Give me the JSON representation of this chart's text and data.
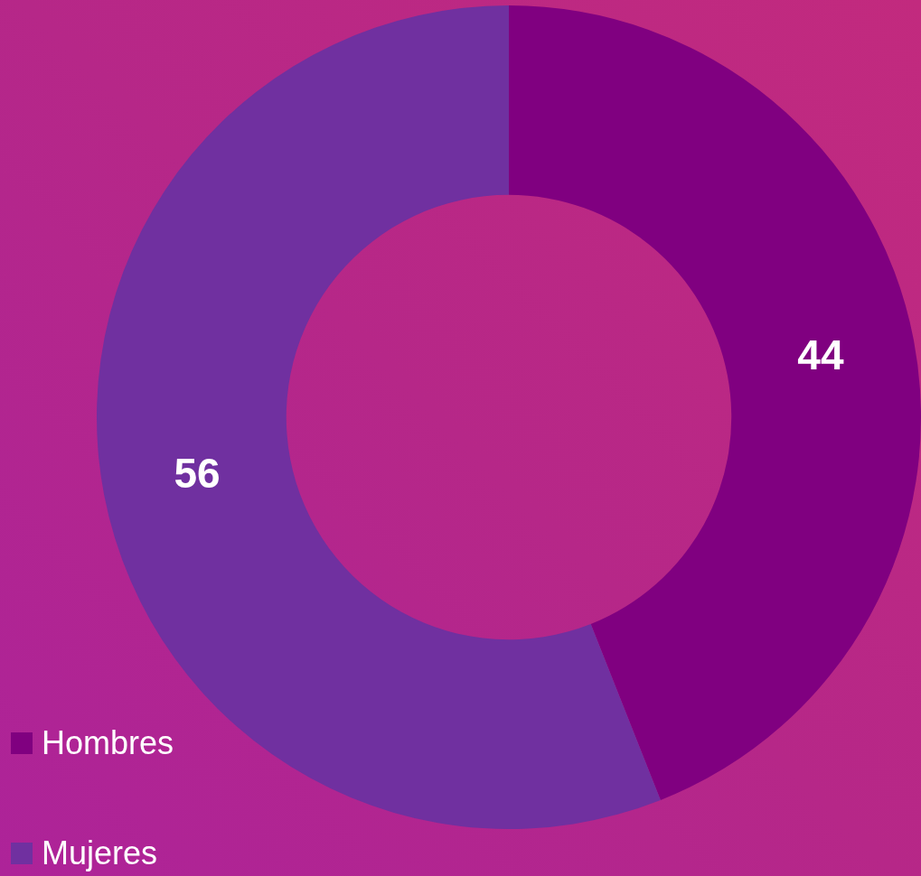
{
  "chart_data": {
    "type": "donut",
    "categories": [
      "Hombres",
      "Mujeres"
    ],
    "values": [
      44,
      56
    ],
    "colors": [
      "#800080",
      "#7030a0"
    ],
    "data_labels": true,
    "legend": "bottom left"
  }
}
